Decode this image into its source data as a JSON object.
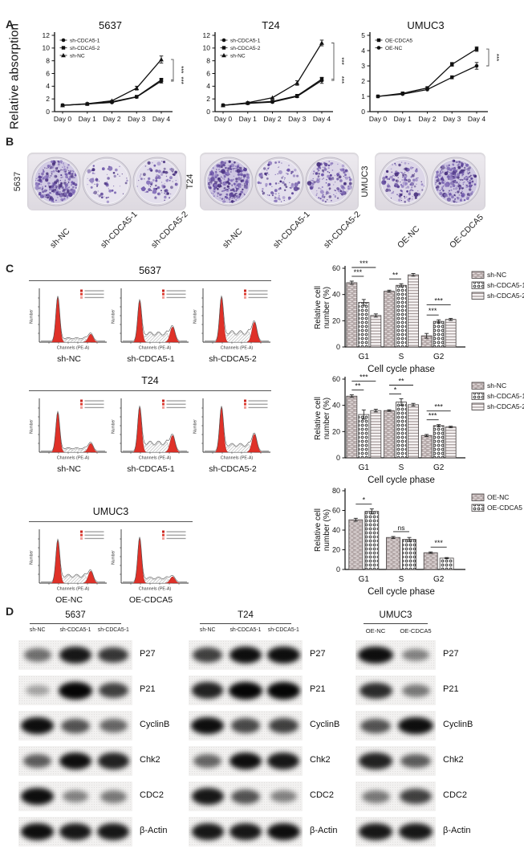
{
  "panel_labels": {
    "a": "A",
    "b": "B",
    "c": "C",
    "d": "D"
  },
  "colors": {
    "flow_peak_red": "#df3128",
    "flow_hatch_gray": "#b5b5b5",
    "colony_purple": "#6f57ab",
    "bar_nc_fill": "#b5a9a9",
    "axis_black": "#151515"
  },
  "chart_data": {
    "proliferation_lines": [
      {
        "type": "line",
        "title": "5637",
        "ylabel": "Relative absorption",
        "ylim": [
          0,
          12
        ],
        "yticks": [
          0,
          2,
          4,
          6,
          8,
          10,
          12
        ],
        "x": [
          "Day 0",
          "Day 1",
          "Day 2",
          "Day 3",
          "Day 4"
        ],
        "series": [
          {
            "name": "sh-CDCA5-1",
            "marker": "circle",
            "values": [
              1,
              1.2,
              1.45,
              2.3,
              4.8
            ],
            "err": [
              0,
              0,
              0,
              0.15,
              0.3
            ]
          },
          {
            "name": "sh-CDCA5-2",
            "marker": "square",
            "values": [
              1,
              1.2,
              1.55,
              2.35,
              5.0
            ],
            "err": [
              0,
              0,
              0,
              0.15,
              0.25
            ]
          },
          {
            "name": "sh-NC",
            "marker": "triangle",
            "values": [
              1,
              1.25,
              1.7,
              3.7,
              8.2
            ],
            "err": [
              0,
              0,
              0,
              0.3,
              0.55
            ]
          }
        ],
        "significance": [
          "***",
          "***"
        ]
      },
      {
        "type": "line",
        "title": "T24",
        "ylabel": "",
        "ylim": [
          0,
          12
        ],
        "yticks": [
          0,
          2,
          4,
          6,
          8,
          10,
          12
        ],
        "x": [
          "Day 0",
          "Day 1",
          "Day 2",
          "Day 3",
          "Day 4"
        ],
        "series": [
          {
            "name": "sh-CDCA5-1",
            "marker": "circle",
            "values": [
              1,
              1.3,
              1.5,
              2.4,
              4.9
            ],
            "err": [
              0,
              0,
              0,
              0.2,
              0.45
            ]
          },
          {
            "name": "sh-CDCA5-2",
            "marker": "square",
            "values": [
              1,
              1.35,
              1.6,
              2.5,
              5.1
            ],
            "err": [
              0,
              0,
              0,
              0.2,
              0.3
            ]
          },
          {
            "name": "sh-NC",
            "marker": "triangle",
            "values": [
              1,
              1.4,
              2.2,
              4.5,
              10.8
            ],
            "err": [
              0,
              0,
              0,
              0.35,
              0.45
            ]
          }
        ],
        "significance": [
          "***",
          "***"
        ]
      },
      {
        "type": "line",
        "title": "UMUC3",
        "ylabel": "",
        "ylim": [
          0,
          5
        ],
        "yticks": [
          0,
          1,
          2,
          3,
          4,
          5
        ],
        "x": [
          "Day 0",
          "Day 1",
          "Day 2",
          "Day 3",
          "Day 4"
        ],
        "series": [
          {
            "name": "OE-CDCA5",
            "marker": "square",
            "values": [
              1,
              1.2,
              1.55,
              3.1,
              4.1
            ],
            "err": [
              0,
              0,
              0,
              0.12,
              0.15
            ]
          },
          {
            "name": "OE-NC",
            "marker": "circle",
            "values": [
              1,
              1.15,
              1.45,
              2.25,
              3.0
            ],
            "err": [
              0,
              0,
              0,
              0.1,
              0.22
            ]
          }
        ],
        "significance": [
          "***"
        ]
      }
    ],
    "cell_cycle_bars": [
      {
        "type": "bar",
        "cell_line": "5637",
        "ylabel_line1": "Relative cell",
        "ylabel_line2": "number (%)",
        "xlabel": "Cell cycle phase",
        "ylim": [
          0,
          60
        ],
        "yticks": [
          0,
          20,
          40,
          60
        ],
        "categories": [
          "G1",
          "S",
          "G2"
        ],
        "series": [
          {
            "name": "sh-NC",
            "pattern": "brick",
            "values": [
              49,
              42.5,
              8.5
            ],
            "err": [
              1.2,
              0.8,
              1.8
            ]
          },
          {
            "name": "sh-CDCA5-1",
            "pattern": "dots",
            "values": [
              34,
              47,
              19.5
            ],
            "err": [
              2.2,
              1.2,
              1.2
            ]
          },
          {
            "name": "sh-CDCA5-2",
            "pattern": "hlines",
            "values": [
              24,
              55,
              21
            ],
            "err": [
              1.2,
              1.0,
              0.8
            ]
          }
        ],
        "significance": [
          {
            "category": 0,
            "pair": [
              0,
              1
            ],
            "label": "***",
            "row": 0
          },
          {
            "category": 0,
            "pair": [
              0,
              2
            ],
            "label": "***",
            "row": 1
          },
          {
            "category": 1,
            "pair": [
              0,
              1
            ],
            "label": "**",
            "row": 0
          },
          {
            "category": 1,
            "pair": [
              0,
              2
            ],
            "label": "***",
            "row": 1
          },
          {
            "category": 2,
            "pair": [
              0,
              1
            ],
            "label": "***",
            "row": 0
          },
          {
            "category": 2,
            "pair": [
              0,
              2
            ],
            "label": "***",
            "row": 1
          }
        ]
      },
      {
        "type": "bar",
        "cell_line": "T24",
        "ylabel_line1": "Relative cell",
        "ylabel_line2": "number (%)",
        "xlabel": "Cell cycle phase",
        "ylim": [
          0,
          60
        ],
        "yticks": [
          0,
          20,
          40,
          60
        ],
        "categories": [
          "G1",
          "S",
          "G2"
        ],
        "series": [
          {
            "name": "sh-NC",
            "pattern": "brick",
            "values": [
              47,
              36,
              17
            ],
            "err": [
              1.0,
              0.6,
              0.8
            ]
          },
          {
            "name": "sh-CDCA5-1",
            "pattern": "dots",
            "values": [
              33,
              42.5,
              24.5
            ],
            "err": [
              3.5,
              2.5,
              0.8
            ]
          },
          {
            "name": "sh-CDCA5-2",
            "pattern": "hlines",
            "values": [
              36,
              40.5,
              23.5
            ],
            "err": [
              1.0,
              1.0,
              0.6
            ]
          }
        ],
        "significance": [
          {
            "category": 0,
            "pair": [
              0,
              1
            ],
            "label": "**",
            "row": 0
          },
          {
            "category": 0,
            "pair": [
              0,
              2
            ],
            "label": "***",
            "row": 1
          },
          {
            "category": 1,
            "pair": [
              0,
              1
            ],
            "label": "*",
            "row": 0
          },
          {
            "category": 1,
            "pair": [
              0,
              2
            ],
            "label": "**",
            "row": 1
          },
          {
            "category": 2,
            "pair": [
              0,
              1
            ],
            "label": "***",
            "row": 0
          },
          {
            "category": 2,
            "pair": [
              0,
              2
            ],
            "label": "***",
            "row": 1
          }
        ]
      },
      {
        "type": "bar",
        "cell_line": "UMUC3",
        "ylabel_line1": "Relative cell",
        "ylabel_line2": "number (%)",
        "xlabel": "Cell cycle phase",
        "ylim": [
          0,
          80
        ],
        "yticks": [
          0,
          20,
          40,
          60,
          80
        ],
        "categories": [
          "G1",
          "S",
          "G2"
        ],
        "series": [
          {
            "name": "OE-NC",
            "pattern": "brick",
            "values": [
              50.5,
              32.5,
              17
            ],
            "err": [
              1.5,
              1.0,
              0.8
            ]
          },
          {
            "name": "OE-CDCA5",
            "pattern": "dots",
            "values": [
              59,
              30.5,
              11.5
            ],
            "err": [
              2.5,
              2.0,
              0.6
            ]
          }
        ],
        "significance": [
          {
            "category": 0,
            "pair": [
              0,
              1
            ],
            "label": "*",
            "row": 0
          },
          {
            "category": 1,
            "pair": [
              0,
              1
            ],
            "label": "ns",
            "row": 0
          },
          {
            "category": 2,
            "pair": [
              0,
              1
            ],
            "label": "***",
            "row": 0
          }
        ]
      }
    ],
    "flow_histograms": [
      {
        "cell_line": "5637",
        "xlabel": "Channels (PE-A)",
        "ylabel": "Number",
        "samples": [
          {
            "label": "sh-NC",
            "g1": 1.0,
            "s": 0.09,
            "g2": 0.2
          },
          {
            "label": "sh-CDCA5-1",
            "g1": 0.92,
            "s": 0.24,
            "g2": 0.38
          },
          {
            "label": "sh-CDCA5-2",
            "g1": 1.0,
            "s": 0.27,
            "g2": 0.5
          }
        ]
      },
      {
        "cell_line": "T24",
        "xlabel": "Channels (PE-A)",
        "ylabel": "Number",
        "samples": [
          {
            "label": "sh-NC",
            "g1": 0.88,
            "s": 0.09,
            "g2": 0.22
          },
          {
            "label": "sh-CDCA5-1",
            "g1": 1.0,
            "s": 0.26,
            "g2": 0.42
          },
          {
            "label": "sh-CDCA5-2",
            "g1": 1.0,
            "s": 0.2,
            "g2": 0.45
          }
        ]
      },
      {
        "cell_line": "UMUC3",
        "xlabel": "Channels (PE-A)",
        "ylabel": "Number",
        "samples": [
          {
            "label": "OE-NC",
            "g1": 0.95,
            "s": 0.2,
            "g2": 0.3
          },
          {
            "label": "OE-CDCA5",
            "g1": 1.0,
            "s": 0.13,
            "g2": 0.16
          }
        ]
      }
    ]
  },
  "colony_assay": {
    "groups": [
      {
        "cell_line": "5637",
        "wells": [
          {
            "label": "sh-NC",
            "density": 0.9
          },
          {
            "label": "sh-CDCA5-1",
            "density": 0.12
          },
          {
            "label": "sh-CDCA5-2",
            "density": 0.3
          }
        ]
      },
      {
        "cell_line": "T24",
        "wells": [
          {
            "label": "sh-NC",
            "density": 1.0
          },
          {
            "label": "sh-CDCA5-1",
            "density": 0.25
          },
          {
            "label": "sh-CDCA5-2",
            "density": 0.5
          }
        ]
      },
      {
        "cell_line": "UMUC3",
        "wells": [
          {
            "label": "OE-NC",
            "density": 0.5
          },
          {
            "label": "OE-CDCA5",
            "density": 0.95
          }
        ]
      }
    ]
  },
  "western_blot": {
    "proteins": [
      "P27",
      "P21",
      "CyclinB",
      "Chk2",
      "CDC2",
      "β-Actin"
    ],
    "groups": [
      {
        "cell_line": "5637",
        "lanes": [
          "sh-NC",
          "sh-CDCA5-1",
          "sh-CDCA5-1"
        ],
        "bands": {
          "P27": [
            0.45,
            0.9,
            0.75
          ],
          "P21": [
            0.18,
            1.0,
            0.7
          ],
          "CyclinB": [
            0.95,
            0.6,
            0.5
          ],
          "Chk2": [
            0.55,
            0.95,
            0.85
          ],
          "CDC2": [
            0.95,
            0.35,
            0.4
          ],
          "β-Actin": [
            0.95,
            0.9,
            0.9
          ]
        }
      },
      {
        "cell_line": "T24",
        "lanes": [
          "sh-NC",
          "sh-CDCA5-1",
          "sh-CDCA5-1"
        ],
        "bands": {
          "P27": [
            0.7,
            0.95,
            0.95
          ],
          "P21": [
            0.85,
            1.0,
            1.0
          ],
          "CyclinB": [
            0.95,
            0.65,
            0.7
          ],
          "Chk2": [
            0.5,
            0.95,
            0.9
          ],
          "CDC2": [
            0.9,
            0.6,
            0.35
          ],
          "β-Actin": [
            0.9,
            0.9,
            0.95
          ]
        }
      },
      {
        "cell_line": "UMUC3",
        "lanes": [
          "OE-NC",
          "OE-CDCA5"
        ],
        "bands": {
          "P27": [
            0.95,
            0.35
          ],
          "P21": [
            0.8,
            0.4
          ],
          "CyclinB": [
            0.6,
            0.95
          ],
          "Chk2": [
            0.85,
            0.55
          ],
          "CDC2": [
            0.4,
            0.7
          ],
          "β-Actin": [
            0.9,
            0.9
          ]
        }
      }
    ]
  }
}
